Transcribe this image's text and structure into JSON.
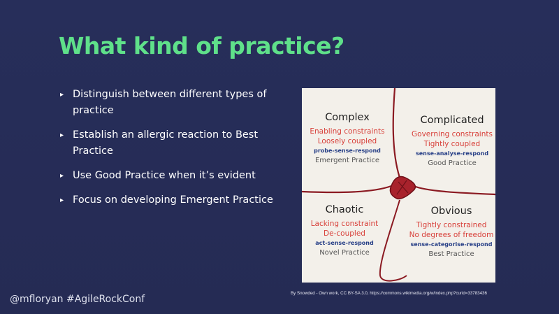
{
  "slide": {
    "title": "What kind of practice?",
    "bullets": [
      "Distinguish between different types of practice",
      "Establish an allergic reaction to Best Practice",
      "Use Good Practice when it’s evident",
      "Focus on developing Emergent Practice"
    ],
    "bullet_marker": "▸"
  },
  "figure": {
    "complex": {
      "title": "Complex",
      "line1": "Enabling constraints",
      "line2": "Loosely coupled",
      "approach": "probe-sense-respond",
      "practice": "Emergent Practice"
    },
    "complicated": {
      "title": "Complicated",
      "line1": "Governing constraints",
      "line2": "Tightly coupled",
      "approach": "sense-analyse-respond",
      "practice": "Good Practice"
    },
    "chaotic": {
      "title": "Chaotic",
      "line1": "Lacking constraint",
      "line2": "De-coupled",
      "approach": "act-sense-respond",
      "practice": "Novel Practice"
    },
    "obvious": {
      "title": "Obvious",
      "line1": "Tightly constrained",
      "line2": "No degrees of freedom",
      "approach": "sense-categorise-respond",
      "practice": "Best Practice"
    },
    "colors": {
      "background": "#f3f0ea",
      "line": "#8b1a22",
      "red_text": "#d8403a",
      "blue_text": "#263e86"
    }
  },
  "caption": "By Snowded - Own work, CC BY-SA 3.0, https://commons.wikimedia.org/w/index.php?curid=33783436",
  "footer": "@mfloryan #AgileRockConf",
  "colors": {
    "slide_background": "#262c56",
    "title": "#5fe08a",
    "body_text": "#ffffff"
  }
}
